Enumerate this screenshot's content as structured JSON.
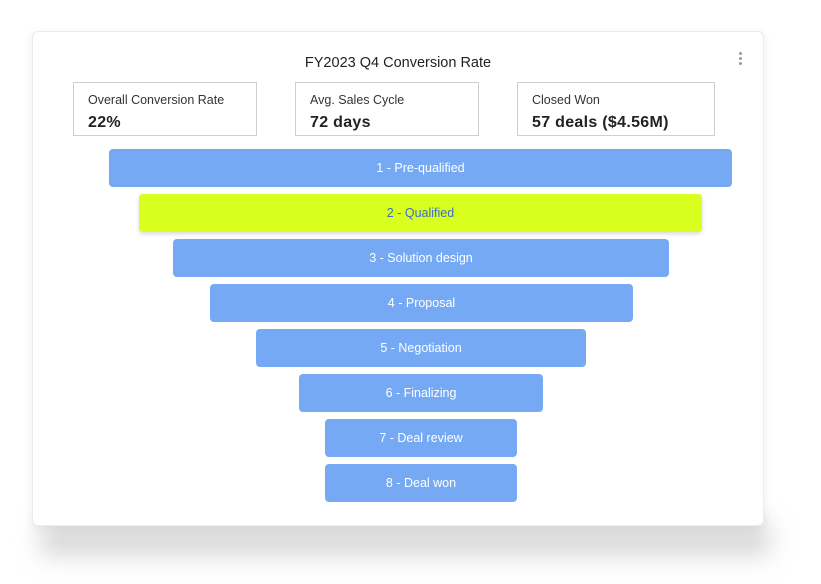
{
  "widget": {
    "title": "FY2023 Q4 Conversion Rate",
    "menu_icon": "more-vertical-icon"
  },
  "kpis": [
    {
      "label": "Overall Conversion Rate",
      "value": "22%"
    },
    {
      "label": "Avg. Sales Cycle",
      "value": "72 days"
    },
    {
      "label": "Closed Won",
      "value": "57 deals ($4.56M)"
    }
  ],
  "funnel": {
    "active_index": 1,
    "colors": {
      "stage": "#76a9f4",
      "active": "#d8ff1e",
      "active_text": "#3d6ec7"
    },
    "stages": [
      {
        "label": "1 - Pre-qualified"
      },
      {
        "label": "2 - Qualified"
      },
      {
        "label": "3 - Solution design"
      },
      {
        "label": "4 - Proposal"
      },
      {
        "label": "5 - Negotiation"
      },
      {
        "label": "6 - Finalizing"
      },
      {
        "label": "7 - Deal review"
      },
      {
        "label": "8 - Deal won"
      }
    ]
  }
}
